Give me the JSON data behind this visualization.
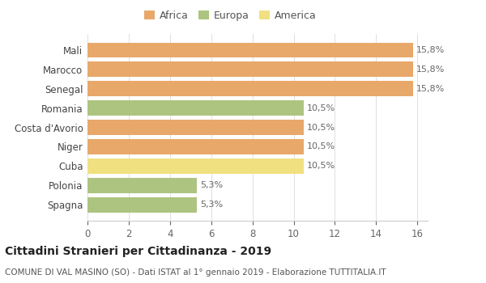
{
  "categories": [
    "Spagna",
    "Polonia",
    "Cuba",
    "Niger",
    "Costa d'Avorio",
    "Romania",
    "Senegal",
    "Marocco",
    "Mali"
  ],
  "values": [
    5.3,
    5.3,
    10.5,
    10.5,
    10.5,
    10.5,
    15.8,
    15.8,
    15.8
  ],
  "labels": [
    "5,3%",
    "5,3%",
    "10,5%",
    "10,5%",
    "10,5%",
    "10,5%",
    "15,8%",
    "15,8%",
    "15,8%"
  ],
  "colors": [
    "#adc480",
    "#adc480",
    "#f0e080",
    "#e8a86a",
    "#e8a86a",
    "#adc480",
    "#e8a86a",
    "#e8a86a",
    "#e8a86a"
  ],
  "legend_items": [
    {
      "label": "Africa",
      "color": "#e8a86a"
    },
    {
      "label": "Europa",
      "color": "#adc480"
    },
    {
      "label": "America",
      "color": "#f0e080"
    }
  ],
  "title": "Cittadini Stranieri per Cittadinanza - 2019",
  "subtitle": "COMUNE DI VAL MASINO (SO) - Dati ISTAT al 1° gennaio 2019 - Elaborazione TUTTITALIA.IT",
  "xlim": [
    0,
    16.5
  ],
  "xticks": [
    0,
    2,
    4,
    6,
    8,
    10,
    12,
    14,
    16
  ],
  "background_color": "#ffffff",
  "bar_height": 0.78,
  "title_fontsize": 10,
  "subtitle_fontsize": 7.5,
  "label_fontsize": 8,
  "tick_fontsize": 8.5,
  "legend_fontsize": 9
}
